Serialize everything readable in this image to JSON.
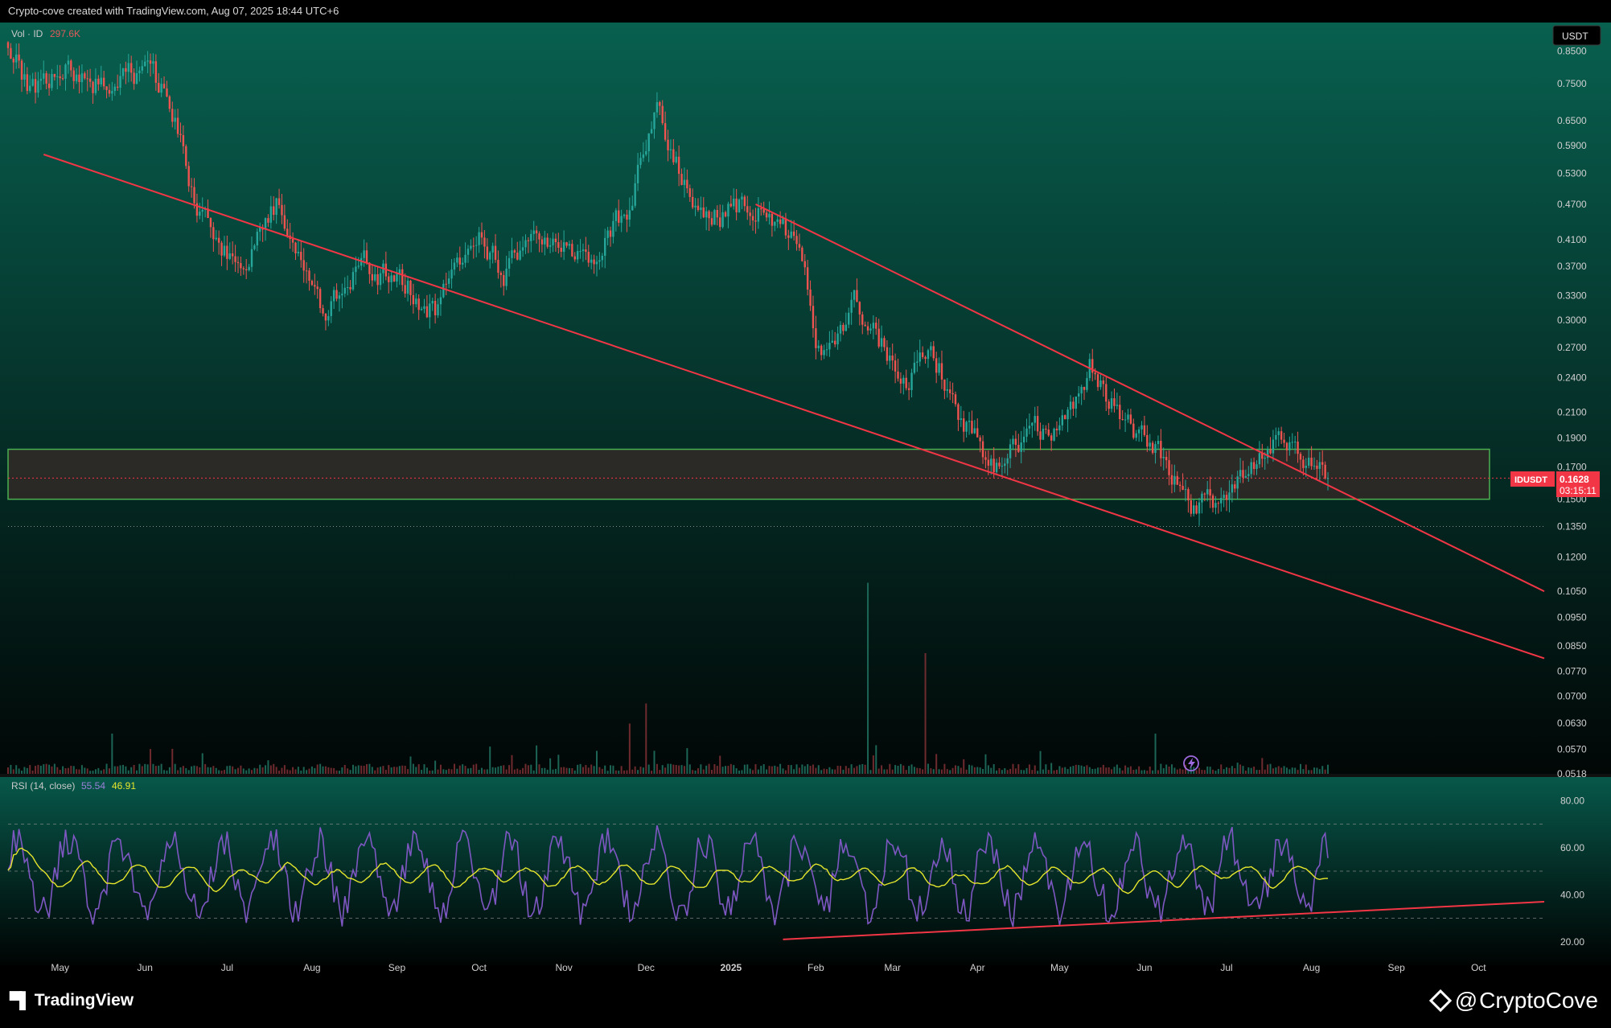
{
  "header": {
    "attribution": "Crypto-cove created with TradingView.com, Aug 07, 2025 18:44 UTC+6"
  },
  "footer": {
    "tv_brand": "TradingView",
    "author_at": "@",
    "author": "CryptoCove"
  },
  "colors": {
    "up": "#26a69a",
    "down": "#ef5350",
    "trendline": "#f23645",
    "zone_border": "#4caf50",
    "zone_fill": "#4a2a2a",
    "rsi_line": "#7e57c2",
    "rsi_ma": "#e6e62c",
    "label_bg": "#f23645"
  },
  "price_pane": {
    "volume_legend": {
      "label": "Vol · ID",
      "value": "297.6K"
    },
    "currency_badge": "USDT",
    "symbol_label": "IDUSDT",
    "last_price": "0.1628",
    "countdown": "03:15:11",
    "y_tick_labels": [
      "0.8500",
      "0.7500",
      "0.6500",
      "0.5900",
      "0.5300",
      "0.4700",
      "0.4100",
      "0.3700",
      "0.3300",
      "0.3000",
      "0.2700",
      "0.2400",
      "0.2100",
      "0.1900",
      "0.1700",
      "0.1500",
      "0.1350",
      "0.1200",
      "0.1050",
      "0.0950",
      "0.0850",
      "0.0770",
      "0.0700",
      "0.0630",
      "0.0570",
      "0.0518"
    ],
    "lightning_icon": "lightning-icon"
  },
  "rsi_pane": {
    "legend": {
      "label": "RSI (14, close)",
      "value_rsi": "55.54",
      "value_ma": "46.91"
    },
    "y_tick_labels": [
      "80.00",
      "60.00",
      "40.00",
      "20.00"
    ]
  },
  "x_axis": {
    "labels": [
      "May",
      "Jun",
      "Jul",
      "Aug",
      "Sep",
      "Oct",
      "Nov",
      "Dec",
      "2025",
      "Feb",
      "Mar",
      "Apr",
      "May",
      "Jun",
      "Jul",
      "Aug",
      "Sep",
      "Oct"
    ]
  },
  "chart_data": {
    "type": "candlestick",
    "symbol": "IDUSDT",
    "quote": "USDT",
    "interval": "1D",
    "y_scale": "log",
    "y_range": [
      0.0518,
      0.95
    ],
    "x_range": [
      "2024-04-12",
      "2025-10-25"
    ],
    "grid": false,
    "price_anchors": [
      [
        "2024-04-12",
        0.88
      ],
      [
        "2024-04-20",
        0.72
      ],
      [
        "2024-05-01",
        0.8
      ],
      [
        "2024-05-20",
        0.73
      ],
      [
        "2024-06-01",
        0.79
      ],
      [
        "2024-06-10",
        0.7
      ],
      [
        "2024-06-20",
        0.46
      ],
      [
        "2024-07-05",
        0.36
      ],
      [
        "2024-07-20",
        0.48
      ],
      [
        "2024-08-05",
        0.31
      ],
      [
        "2024-08-20",
        0.37
      ],
      [
        "2024-09-05",
        0.34
      ],
      [
        "2024-09-15",
        0.31
      ],
      [
        "2024-10-01",
        0.43
      ],
      [
        "2024-10-10",
        0.36
      ],
      [
        "2024-10-25",
        0.42
      ],
      [
        "2024-11-10",
        0.37
      ],
      [
        "2024-11-25",
        0.47
      ],
      [
        "2024-12-05",
        0.69
      ],
      [
        "2024-12-15",
        0.5
      ],
      [
        "2024-12-25",
        0.45
      ],
      [
        "2025-01-10",
        0.47
      ],
      [
        "2025-01-25",
        0.4
      ],
      [
        "2025-02-03",
        0.26
      ],
      [
        "2025-02-15",
        0.32
      ],
      [
        "2025-02-25",
        0.27
      ],
      [
        "2025-03-05",
        0.23
      ],
      [
        "2025-03-15",
        0.27
      ],
      [
        "2025-03-25",
        0.21
      ],
      [
        "2025-04-07",
        0.165
      ],
      [
        "2025-04-20",
        0.2
      ],
      [
        "2025-05-01",
        0.19
      ],
      [
        "2025-05-12",
        0.25
      ],
      [
        "2025-05-25",
        0.2
      ],
      [
        "2025-06-05",
        0.185
      ],
      [
        "2025-06-20",
        0.14
      ],
      [
        "2025-07-05",
        0.16
      ],
      [
        "2025-07-20",
        0.2
      ],
      [
        "2025-07-28",
        0.18
      ],
      [
        "2025-08-07",
        0.1628
      ]
    ],
    "volume_spikes": [
      [
        "2025-02-20",
        0.95
      ],
      [
        "2025-03-13",
        0.6
      ],
      [
        "2024-12-01",
        0.35
      ],
      [
        "2024-11-25",
        0.25
      ],
      [
        "2025-06-05",
        0.2
      ],
      [
        "2024-05-20",
        0.2
      ]
    ],
    "support_resistance_zone": {
      "from": "2024-04-12",
      "to": "2025-10-05",
      "top": 0.182,
      "bottom": 0.15
    },
    "last_price_line": 0.1628,
    "dotted_level": 0.135,
    "trendlines": [
      {
        "name": "lower",
        "from": [
          "2024-04-25",
          0.57
        ],
        "to": [
          "2025-10-25",
          0.081
        ]
      },
      {
        "name": "upper",
        "from": [
          "2025-01-10",
          0.47
        ],
        "to": [
          "2025-10-25",
          0.105
        ]
      }
    ],
    "rsi": {
      "period": 14,
      "y_range": [
        10,
        90
      ],
      "bands": [
        30,
        50,
        70
      ],
      "last_rsi": 55.54,
      "last_ma": 46.91,
      "support_line": {
        "from": [
          "2025-01-20",
          21
        ],
        "to": [
          "2025-10-25",
          37
        ]
      }
    }
  }
}
